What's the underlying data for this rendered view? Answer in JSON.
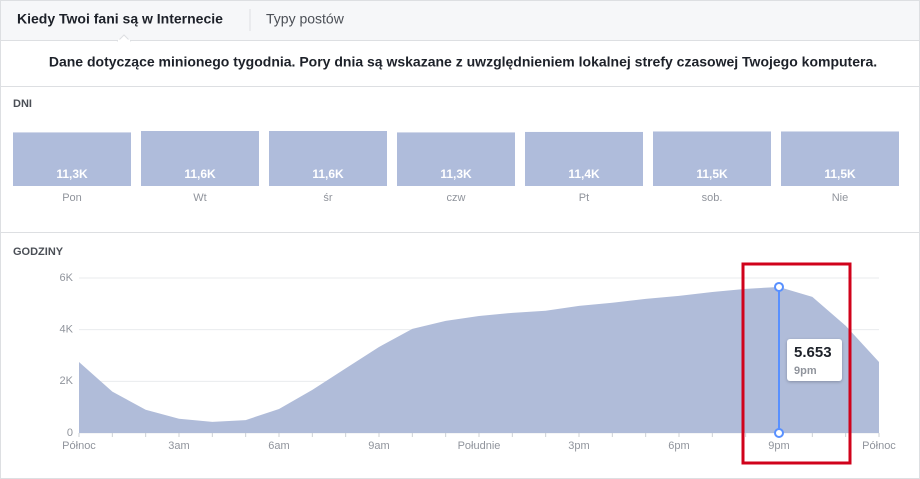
{
  "tabs": [
    "Kiedy Twoi fani są w Internecie",
    "Typy postów"
  ],
  "description": "Dane dotyczące minionego tygodnia. Pory dnia są wskazane z uwzględnieniem lokalnej strefy czasowej Twojego komputera.",
  "chart_data": [
    {
      "type": "bar",
      "title": "DNI",
      "color": "#afbcdb",
      "categories": [
        "Pon",
        "Wt",
        "śr",
        "czw",
        "Pt",
        "sob.",
        "Nie"
      ],
      "values": [
        11300,
        11600,
        11600,
        11300,
        11400,
        11500,
        11500
      ],
      "value_labels": [
        "11,3K",
        "11,6K",
        "11,6K",
        "11,3K",
        "11,4K",
        "11,5K",
        "11,5K"
      ]
    },
    {
      "type": "area",
      "title": "GODZINY",
      "color": "#b0bcd9",
      "grid": true,
      "categories": [
        "Północ",
        null,
        null,
        "3am",
        null,
        null,
        "6am",
        null,
        null,
        "9am",
        null,
        null,
        "Południe",
        null,
        null,
        "3pm",
        null,
        null,
        "6pm",
        null,
        null,
        "9pm",
        null,
        null,
        "Północ"
      ],
      "values": [
        2750,
        1600,
        900,
        550,
        430,
        500,
        930,
        1670,
        2500,
        3330,
        4030,
        4340,
        4530,
        4650,
        4730,
        4920,
        5040,
        5190,
        5310,
        5460,
        5580,
        5653,
        5270,
        4150,
        2750
      ],
      "value_labels": [
        null,
        null,
        null,
        null,
        null,
        null,
        null,
        null,
        null,
        null,
        null,
        null,
        null,
        null,
        null,
        null,
        null,
        null,
        null,
        null,
        null,
        "5.653",
        null,
        null,
        null
      ],
      "ylim": [
        0,
        6000
      ],
      "yticks": [
        0,
        {
          "value": 2000,
          "label": "2K"
        },
        {
          "value": 4000,
          "label": "4K"
        },
        {
          "value": 6000,
          "label": "6K"
        }
      ]
    }
  ]
}
